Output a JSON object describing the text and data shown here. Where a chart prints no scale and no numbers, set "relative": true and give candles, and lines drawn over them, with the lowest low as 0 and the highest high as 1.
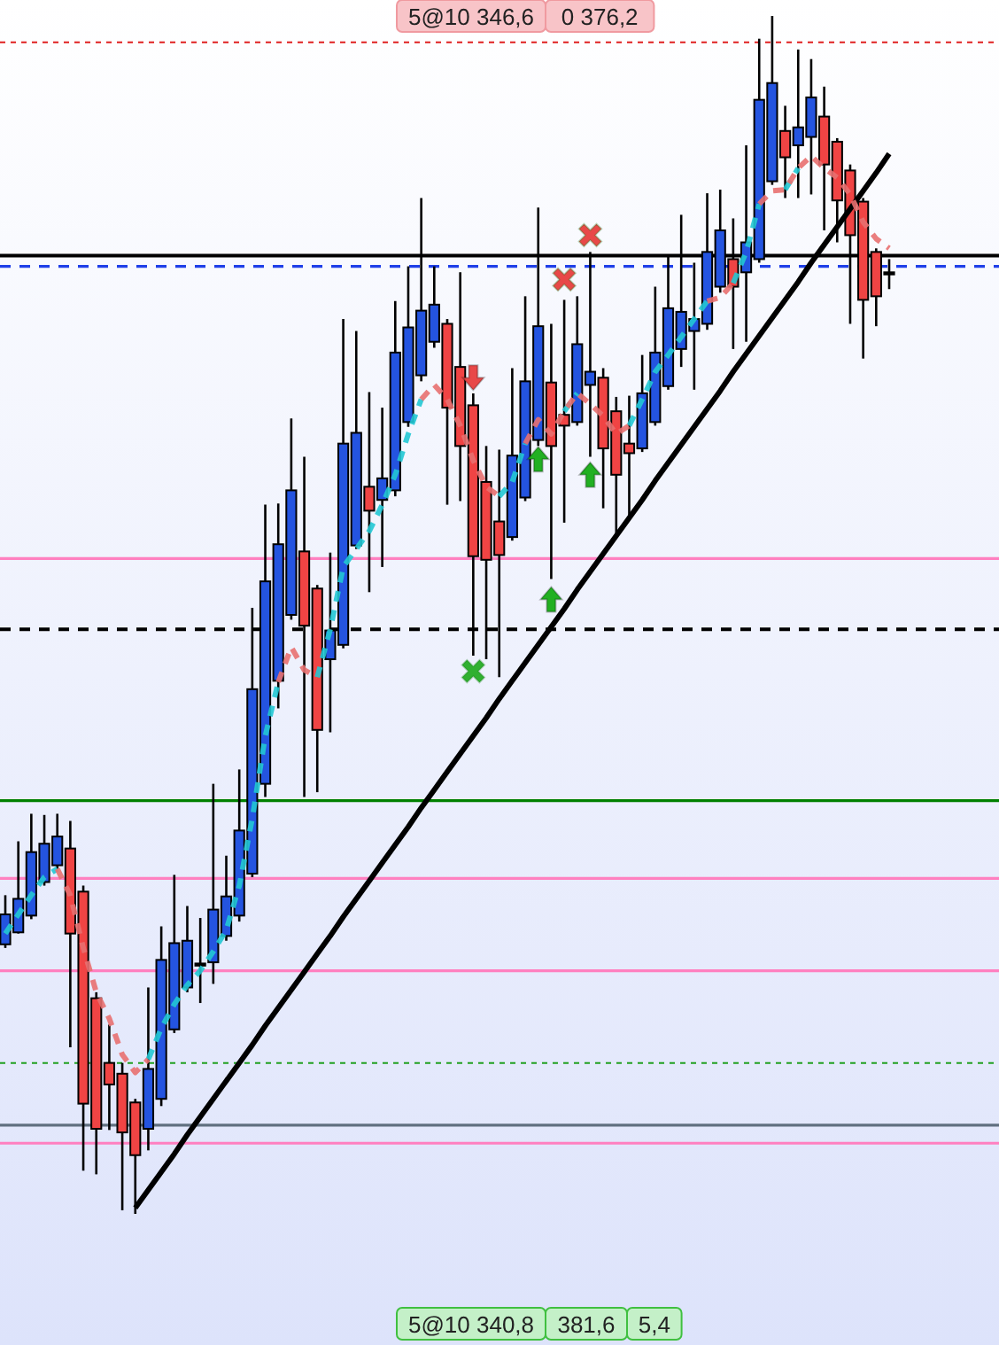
{
  "chart_data": {
    "type": "candlestick",
    "relative": true,
    "categories": [
      null,
      null,
      null,
      null,
      null,
      null,
      null,
      null,
      null,
      null,
      null,
      null,
      null,
      null,
      null,
      null,
      null,
      null,
      null,
      null,
      null,
      null,
      null,
      null,
      null,
      null,
      null,
      null,
      null,
      null,
      null,
      null,
      null,
      null,
      null,
      null,
      null,
      null,
      null,
      null,
      null,
      null,
      null,
      null,
      null,
      null,
      null,
      null,
      null,
      null,
      null,
      null,
      null,
      null,
      null,
      null,
      null,
      null,
      null,
      null,
      null,
      null,
      null,
      null,
      null,
      null,
      null,
      null,
      null
    ],
    "ohlc": [
      [
        0.225,
        0.266,
        0.222,
        0.25
      ],
      [
        0.235,
        0.311,
        0.234,
        0.263
      ],
      [
        0.249,
        0.334,
        0.246,
        0.302
      ],
      [
        0.277,
        0.333,
        0.274,
        0.309
      ],
      [
        0.291,
        0.334,
        0.288,
        0.315
      ],
      [
        0.305,
        0.328,
        0.139,
        0.234
      ],
      [
        0.269,
        0.274,
        0.036,
        0.092
      ],
      [
        0.18,
        0.185,
        0.033,
        0.071
      ],
      [
        0.126,
        0.158,
        0.07,
        0.108
      ],
      [
        0.117,
        0.126,
        0.003,
        0.068
      ],
      [
        0.093,
        0.096,
        0,
        0.049
      ],
      [
        0.071,
        0.189,
        0.053,
        0.121
      ],
      [
        0.096,
        0.24,
        0.09,
        0.212
      ],
      [
        0.154,
        0.283,
        0.151,
        0.226
      ],
      [
        0.189,
        0.257,
        0.185,
        0.228
      ],
      [
        0.209,
        0.247,
        0.176,
        0.209
      ],
      [
        0.21,
        0.359,
        0.192,
        0.254
      ],
      [
        0.232,
        0.299,
        0.228,
        0.265
      ],
      [
        0.249,
        0.371,
        0.244,
        0.32
      ],
      [
        0.284,
        0.506,
        0.281,
        0.438
      ],
      [
        0.359,
        0.592,
        0.348,
        0.528
      ],
      [
        0.445,
        0.593,
        0.422,
        0.559
      ],
      [
        0.5,
        0.664,
        0.496,
        0.604
      ],
      [
        0.553,
        0.632,
        0.348,
        0.491
      ],
      [
        0.522,
        0.525,
        0.352,
        0.404
      ],
      [
        0.463,
        0.552,
        0.402,
        0.487
      ],
      [
        0.475,
        0.747,
        0.472,
        0.643
      ],
      [
        0.558,
        0.737,
        0.555,
        0.652
      ],
      [
        0.607,
        0.686,
        0.519,
        0.587
      ],
      [
        0.596,
        0.673,
        0.54,
        0.614
      ],
      [
        0.604,
        0.762,
        0.599,
        0.719
      ],
      [
        0.661,
        0.791,
        0.657,
        0.74
      ],
      [
        0.7,
        0.848,
        0.695,
        0.754
      ],
      [
        0.728,
        0.791,
        0.723,
        0.759
      ],
      [
        0.743,
        0.747,
        0.592,
        0.673
      ],
      [
        0.707,
        0.786,
        0.595,
        0.641
      ],
      [
        0.675,
        0.685,
        0.466,
        0.549
      ],
      [
        0.611,
        0.641,
        0.463,
        0.546
      ],
      [
        0.578,
        0.638,
        0.448,
        0.55
      ],
      [
        0.565,
        0.706,
        0.562,
        0.633
      ],
      [
        0.598,
        0.766,
        0.595,
        0.695
      ],
      [
        0.646,
        0.84,
        0.641,
        0.741
      ],
      [
        0.694,
        0.743,
        0.53,
        0.641
      ],
      [
        0.667,
        0.763,
        0.577,
        0.658
      ],
      [
        0.661,
        0.766,
        0.658,
        0.726
      ],
      [
        0.692,
        0.803,
        0.632,
        0.703
      ],
      [
        0.698,
        0.706,
        0.589,
        0.639
      ],
      [
        0.67,
        0.682,
        0.567,
        0.617
      ],
      [
        0.643,
        0.683,
        0.581,
        0.635
      ],
      [
        0.639,
        0.717,
        0.636,
        0.685
      ],
      [
        0.661,
        0.774,
        0.658,
        0.719
      ],
      [
        0.691,
        0.799,
        0.688,
        0.756
      ],
      [
        0.722,
        0.834,
        0.707,
        0.753
      ],
      [
        0.737,
        0.794,
        0.688,
        0.747
      ],
      [
        0.743,
        0.852,
        0.738,
        0.803
      ],
      [
        0.774,
        0.855,
        0.769,
        0.821
      ],
      [
        0.797,
        0.831,
        0.722,
        0.774
      ],
      [
        0.786,
        0.892,
        0.728,
        0.811
      ],
      [
        0.797,
        0.981,
        0.794,
        0.93
      ],
      [
        0.862,
        1,
        0.859,
        0.944
      ],
      [
        0.904,
        0.925,
        0.848,
        0.882
      ],
      [
        0.892,
        0.972,
        0.848,
        0.907
      ],
      [
        0.899,
        0.964,
        0.851,
        0.932
      ],
      [
        0.916,
        0.941,
        0.821,
        0.876
      ],
      [
        0.895,
        0.898,
        0.811,
        0.846
      ],
      [
        0.871,
        0.876,
        0.743,
        0.817
      ],
      [
        0.845,
        0.848,
        0.714,
        0.763
      ],
      [
        0.803,
        0.806,
        0.741,
        0.766
      ],
      [
        0.786,
        0.797,
        0.772,
        0.786
      ]
    ],
    "colors": [
      "#2454e0",
      "#2454e0",
      "#2454e0",
      "#2454e0",
      "#2454e0",
      "#f04444",
      "#f04444",
      "#f04444",
      "#f04444",
      "#f04444",
      "#f04444",
      "#2454e0",
      "#2454e0",
      "#2454e0",
      "#2454e0",
      "#000000",
      "#2454e0",
      "#2454e0",
      "#2454e0",
      "#2454e0",
      "#2454e0",
      "#2454e0",
      "#2454e0",
      "#f04444",
      "#f04444",
      "#2454e0",
      "#2454e0",
      "#2454e0",
      "#f04444",
      "#2454e0",
      "#2454e0",
      "#2454e0",
      "#2454e0",
      "#2454e0",
      "#f04444",
      "#f04444",
      "#f04444",
      "#f04444",
      "#f04444",
      "#2454e0",
      "#2454e0",
      "#2454e0",
      "#f04444",
      "#f04444",
      "#2454e0",
      "#2454e0",
      "#f04444",
      "#f04444",
      "#f04444",
      "#2454e0",
      "#2454e0",
      "#2454e0",
      "#2454e0",
      "#2454e0",
      "#2454e0",
      "#2454e0",
      "#f04444",
      "#2454e0",
      "#2454e0",
      "#2454e0",
      "#f04444",
      "#2454e0",
      "#2454e0",
      "#f04444",
      "#f04444",
      "#f04444",
      "#f04444",
      "#f04444",
      "#000000"
    ],
    "series": [
      {
        "type": "line",
        "color": "#000000",
        "line_style": "solid",
        "values": [
          null,
          null,
          null,
          null,
          null,
          null,
          null,
          null,
          null,
          null,
          0.005,
          0.02,
          0.035,
          0.05,
          0.066,
          0.081,
          0.096,
          0.111,
          0.126,
          0.141,
          0.157,
          0.172,
          0.187,
          0.202,
          0.217,
          0.232,
          0.248,
          0.263,
          0.278,
          0.293,
          0.308,
          0.323,
          0.339,
          0.354,
          0.369,
          0.384,
          0.399,
          0.414,
          0.43,
          0.445,
          0.46,
          0.475,
          0.49,
          0.505,
          0.521,
          0.536,
          0.551,
          0.566,
          0.581,
          0.596,
          0.612,
          0.627,
          0.642,
          0.657,
          0.672,
          0.687,
          0.703,
          0.718,
          0.733,
          0.748,
          0.763,
          0.778,
          0.794,
          0.809,
          0.824,
          0.839,
          0.854,
          0.869,
          0.885
        ]
      },
      {
        "type": "line",
        "color": "#22c8d4",
        "line_style": "dashed",
        "values": [
          0.234,
          0.25,
          0.266,
          0.281,
          0.288,
          null,
          null,
          null,
          null,
          null,
          null,
          0.129,
          0.155,
          0.175,
          0.191,
          0.203,
          0.219,
          0.237,
          0.274,
          0.33,
          0.399,
          0.444,
          null,
          null,
          0.448,
          0.488,
          0.54,
          0.555,
          0.57,
          0.592,
          0.617,
          0.651,
          0.68,
          null,
          null,
          null,
          null,
          null,
          0.599,
          0.611,
          0.643,
          null,
          null,
          0.67,
          0.685,
          null,
          null,
          null,
          0.658,
          0.68,
          0.703,
          0.717,
          0.732,
          0.747,
          0.762,
          null,
          0.777,
          0.803,
          0.843,
          null,
          0.855,
          0.873,
          null,
          null,
          null,
          null,
          null,
          null,
          null
        ]
      },
      {
        "type": "line",
        "color": "#e87070",
        "line_style": "dashed",
        "values": [
          null,
          null,
          null,
          null,
          0.288,
          0.266,
          0.222,
          0.185,
          0.163,
          0.133,
          0.118,
          0.129,
          null,
          null,
          null,
          null,
          null,
          null,
          null,
          null,
          null,
          0.444,
          0.473,
          0.454,
          0.448,
          null,
          null,
          null,
          null,
          null,
          null,
          null,
          0.68,
          0.692,
          0.68,
          0.658,
          0.629,
          0.607,
          0.599,
          null,
          0.643,
          0.663,
          0.651,
          0.67,
          0.685,
          0.676,
          0.666,
          0.651,
          0.658,
          null,
          null,
          null,
          null,
          null,
          0.762,
          0.765,
          0.777,
          null,
          0.843,
          0.854,
          0.855,
          0.873,
          0.883,
          0.873,
          0.865,
          0.851,
          0.828,
          0.814,
          0.806
        ]
      },
      {
        "type": "scatter",
        "marker": "triangle",
        "color": "#22b022",
        "values": [
          null,
          null,
          null,
          null,
          null,
          null,
          null,
          null,
          null,
          null,
          null,
          null,
          null,
          null,
          null,
          null,
          null,
          null,
          null,
          null,
          null,
          null,
          null,
          null,
          null,
          null,
          null,
          null,
          null,
          null,
          null,
          null,
          null,
          null,
          null,
          null,
          null,
          null,
          null,
          null,
          null,
          0.63,
          0.513,
          null,
          null,
          0.617,
          null,
          null,
          null,
          null,
          null,
          null,
          null,
          null,
          null,
          null,
          null,
          null,
          null,
          null,
          null,
          null,
          null,
          null,
          null,
          null,
          null,
          null,
          null
        ]
      },
      {
        "type": "scatter",
        "marker": "triangle",
        "color": "#e84848",
        "values": [
          null,
          null,
          null,
          null,
          null,
          null,
          null,
          null,
          null,
          null,
          null,
          null,
          null,
          null,
          null,
          null,
          null,
          null,
          null,
          null,
          null,
          null,
          null,
          null,
          null,
          null,
          null,
          null,
          null,
          null,
          null,
          null,
          null,
          null,
          null,
          null,
          0.698,
          null,
          null,
          null,
          null,
          null,
          null,
          null,
          null,
          null,
          null,
          null,
          null,
          null,
          null,
          null,
          null,
          null,
          null,
          null,
          null,
          null,
          null,
          null,
          null,
          null,
          null,
          null,
          null,
          null,
          null,
          null,
          null
        ]
      },
      {
        "type": "scatter",
        "marker": "cross",
        "color": "#e84848",
        "values": [
          null,
          null,
          null,
          null,
          null,
          null,
          null,
          null,
          null,
          null,
          null,
          null,
          null,
          null,
          null,
          null,
          null,
          null,
          null,
          null,
          null,
          null,
          null,
          null,
          null,
          null,
          null,
          null,
          null,
          null,
          null,
          null,
          null,
          null,
          null,
          null,
          null,
          null,
          null,
          null,
          null,
          null,
          null,
          0.78,
          null,
          0.817,
          null,
          null,
          null,
          null,
          null,
          null,
          null,
          null,
          null,
          null,
          null,
          null,
          null,
          null,
          null,
          null,
          null,
          null,
          null,
          null,
          null,
          null,
          null
        ]
      },
      {
        "type": "scatter",
        "marker": "cross",
        "color": "#30b030",
        "values": [
          null,
          null,
          null,
          null,
          null,
          null,
          null,
          null,
          null,
          null,
          null,
          null,
          null,
          null,
          null,
          null,
          null,
          null,
          null,
          null,
          null,
          null,
          null,
          null,
          null,
          null,
          null,
          null,
          null,
          null,
          null,
          null,
          null,
          null,
          null,
          null,
          0.453,
          null,
          null,
          null,
          null,
          null,
          null,
          null,
          null,
          null,
          null,
          null,
          null,
          null,
          null,
          null,
          null,
          null,
          null,
          null,
          null,
          null,
          null,
          null,
          null,
          null,
          null,
          null,
          null,
          null,
          null,
          null,
          null
        ]
      }
    ],
    "ref_lines": [
      {
        "axis": "y",
        "value": 0.978,
        "color": "#e02020",
        "line_style": "dotted"
      },
      {
        "axis": "y",
        "value": 0.8,
        "color": "#000000",
        "line_style": "solid"
      },
      {
        "axis": "y",
        "value": 0.791,
        "color": "#2040e8",
        "line_style": "dashed"
      },
      {
        "axis": "y",
        "value": 0.547,
        "color": "#ff80c0",
        "line_style": "solid"
      },
      {
        "axis": "y",
        "value": 0.488,
        "color": "#000000",
        "line_style": "dashed"
      },
      {
        "axis": "y",
        "value": 0.345,
        "color": "#008000",
        "line_style": "solid"
      },
      {
        "axis": "y",
        "value": 0.28,
        "color": "#ff80c0",
        "line_style": "solid"
      },
      {
        "axis": "y",
        "value": 0.203,
        "color": "#ff80c0",
        "line_style": "solid"
      },
      {
        "axis": "y",
        "value": 0.126,
        "color": "#20a020",
        "line_style": "dotted"
      },
      {
        "axis": "y",
        "value": 0.074,
        "color": "#607080",
        "line_style": "solid"
      },
      {
        "axis": "y",
        "value": 0.059,
        "color": "#ff80c0",
        "line_style": "solid"
      }
    ],
    "annotations": [
      "5@10 346,6",
      "0 376,2",
      "5@10 340,8",
      "381,6",
      "5,4"
    ]
  }
}
